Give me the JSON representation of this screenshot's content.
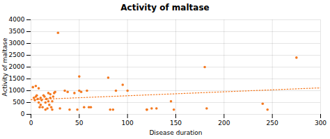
{
  "chart_data": {
    "type": "scatter",
    "title": "Activity of maltase",
    "xlabel": "Disease duration",
    "ylabel": "Activity of maltase",
    "series": [
      {
        "type": "scatter",
        "color": "#f47920",
        "x": [
          2,
          3,
          4,
          5,
          5,
          6,
          7,
          8,
          8,
          9,
          10,
          10,
          11,
          12,
          13,
          14,
          15,
          15,
          16,
          17,
          18,
          18,
          19,
          20,
          20,
          21,
          22,
          22,
          23,
          24,
          25,
          28,
          30,
          35,
          38,
          40,
          45,
          48,
          50,
          50,
          52,
          55,
          58,
          60,
          62,
          80,
          82,
          85,
          88,
          95,
          100,
          120,
          120,
          125,
          130,
          145,
          148,
          180,
          182,
          240,
          245,
          275
        ],
        "values": [
          1150,
          700,
          600,
          750,
          1200,
          800,
          650,
          500,
          1100,
          300,
          700,
          400,
          600,
          300,
          800,
          750,
          200,
          500,
          650,
          250,
          900,
          550,
          400,
          700,
          850,
          300,
          550,
          200,
          750,
          900,
          950,
          3450,
          250,
          1000,
          950,
          200,
          900,
          200,
          1000,
          1600,
          950,
          300,
          1000,
          300,
          300,
          1550,
          200,
          200,
          1000,
          1250,
          1000,
          200,
          200,
          250,
          250,
          550,
          200,
          2000,
          250,
          450,
          200,
          2400
        ]
      },
      {
        "type": "line",
        "color": "#f47920",
        "line_style": "dotted",
        "x": [
          0,
          300
        ],
        "values": [
          620,
          1120
        ]
      }
    ],
    "xlim": [
      0,
      300
    ],
    "ylim": [
      0,
      4000
    ],
    "xticks": [
      0,
      50,
      100,
      150,
      200,
      250,
      300
    ],
    "yticks": [
      0,
      500,
      1000,
      1500,
      2000,
      2500,
      3000,
      3500,
      4000
    ],
    "grid": true
  }
}
